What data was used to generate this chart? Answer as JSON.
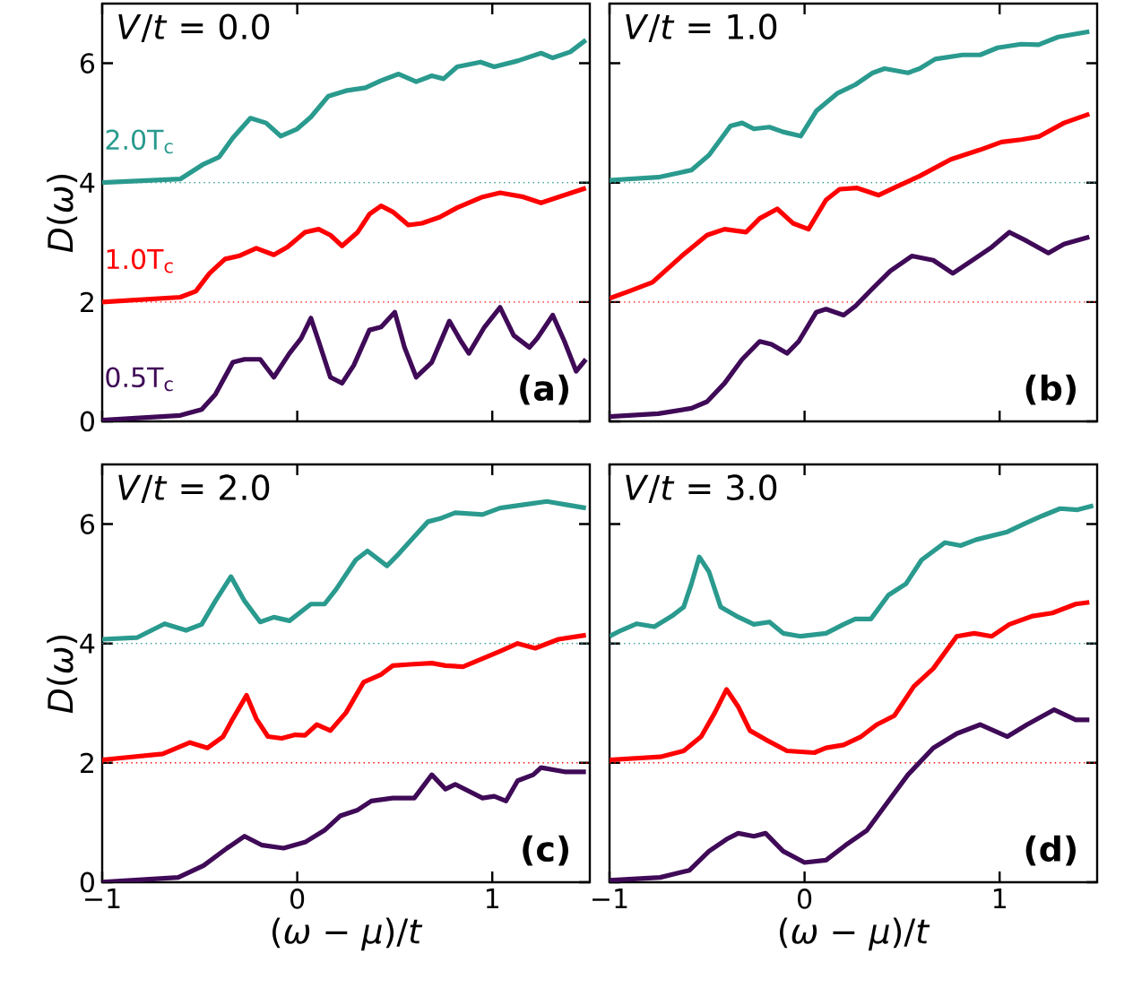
{
  "chart_data": [
    {
      "type": "line",
      "ylabel": "*D*(*ω*)",
      "annotations": [
        "*V*/*t* = 0.0",
        "(a)"
      ],
      "xlim": [
        -1,
        1.5
      ],
      "ylim": [
        0,
        7
      ],
      "xticks": [
        -1,
        0,
        1
      ],
      "yticks": [
        0,
        2,
        4,
        6
      ],
      "tick_labels": "y",
      "ref_lines": [
        {
          "axis": "y",
          "value": 4,
          "color": "#2a9a8e",
          "line_style": "dotted"
        },
        {
          "axis": "y",
          "value": 2,
          "color": "#ff0000",
          "line_style": "dotted"
        }
      ],
      "series": [
        {
          "name": "2.0T$_{c}$",
          "color": "#2a9a8e",
          "x": [
            -1,
            -0.6,
            -0.48,
            -0.4,
            -0.33,
            -0.24,
            -0.16,
            -0.085,
            0.0,
            0.07,
            0.16,
            0.25,
            0.35,
            0.43,
            0.52,
            0.61,
            0.69,
            0.75,
            0.82,
            0.94,
            1.01,
            1.13,
            1.25,
            1.31,
            1.4,
            1.48
          ],
          "values": [
            4.0,
            4.06,
            4.31,
            4.43,
            4.75,
            5.08,
            5.0,
            4.78,
            4.9,
            5.1,
            5.45,
            5.54,
            5.59,
            5.71,
            5.82,
            5.69,
            5.79,
            5.74,
            5.94,
            6.02,
            5.94,
            6.04,
            6.17,
            6.09,
            6.19,
            6.39
          ]
        },
        {
          "name": "1.0T$_{c}$",
          "color": "#ff0000",
          "x": [
            -1,
            -0.6,
            -0.52,
            -0.45,
            -0.37,
            -0.3,
            -0.21,
            -0.12,
            -0.05,
            0.04,
            0.11,
            0.17,
            0.23,
            0.31,
            0.37,
            0.43,
            0.49,
            0.57,
            0.64,
            0.73,
            0.82,
            0.95,
            1.04,
            1.16,
            1.25,
            1.34,
            1.48
          ],
          "values": [
            2.0,
            2.08,
            2.18,
            2.48,
            2.72,
            2.77,
            2.9,
            2.79,
            2.92,
            3.17,
            3.22,
            3.12,
            2.94,
            3.17,
            3.47,
            3.61,
            3.51,
            3.29,
            3.32,
            3.42,
            3.58,
            3.76,
            3.83,
            3.76,
            3.66,
            3.76,
            3.91
          ]
        },
        {
          "name": "0.5T$_{c}$",
          "color": "#3f0a57",
          "x": [
            -1,
            -0.6,
            -0.49,
            -0.42,
            -0.33,
            -0.27,
            -0.19,
            -0.12,
            -0.04,
            0.02,
            0.07,
            0.11,
            0.17,
            0.23,
            0.29,
            0.37,
            0.43,
            0.5,
            0.55,
            0.61,
            0.69,
            0.78,
            0.84,
            0.88,
            0.96,
            1.04,
            1.11,
            1.19,
            1.23,
            1.31,
            1.37,
            1.43,
            1.48
          ],
          "values": [
            0.02,
            0.1,
            0.2,
            0.45,
            0.99,
            1.04,
            1.04,
            0.74,
            1.14,
            1.39,
            1.73,
            1.34,
            0.74,
            0.64,
            0.94,
            1.53,
            1.58,
            1.83,
            1.24,
            0.74,
            0.99,
            1.68,
            1.34,
            1.14,
            1.58,
            1.91,
            1.44,
            1.24,
            1.39,
            1.78,
            1.34,
            0.84,
            1.04
          ]
        }
      ]
    },
    {
      "type": "line",
      "annotations": [
        "*V*/*t* = 1.0",
        "(b)"
      ],
      "xlim": [
        -1,
        1.5
      ],
      "ylim": [
        0,
        7
      ],
      "xticks": [
        -1,
        0,
        1
      ],
      "yticks": [
        0,
        2,
        4,
        6
      ],
      "tick_labels": false,
      "ref_lines": [
        {
          "axis": "y",
          "value": 4,
          "color": "#2a9a8e",
          "line_style": "dotted"
        },
        {
          "axis": "y",
          "value": 2,
          "color": "#ff0000",
          "line_style": "dotted"
        }
      ],
      "series": [
        {
          "color": "#2a9a8e",
          "x": [
            -1,
            -0.75,
            -0.58,
            -0.49,
            -0.38,
            -0.32,
            -0.26,
            -0.18,
            -0.11,
            -0.02,
            0.06,
            0.17,
            0.26,
            0.35,
            0.41,
            0.53,
            0.59,
            0.67,
            0.81,
            0.9,
            0.99,
            1.11,
            1.2,
            1.3,
            1.46
          ],
          "values": [
            4.04,
            4.09,
            4.21,
            4.46,
            4.95,
            5.0,
            4.9,
            4.93,
            4.85,
            4.78,
            5.2,
            5.5,
            5.64,
            5.84,
            5.91,
            5.84,
            5.91,
            6.07,
            6.14,
            6.14,
            6.26,
            6.32,
            6.31,
            6.44,
            6.53
          ]
        },
        {
          "color": "#ff0000",
          "x": [
            -1,
            -0.9,
            -0.78,
            -0.63,
            -0.5,
            -0.41,
            -0.3,
            -0.23,
            -0.14,
            -0.06,
            0.02,
            0.11,
            0.18,
            0.27,
            0.38,
            0.47,
            0.59,
            0.75,
            0.9,
            1.01,
            1.11,
            1.2,
            1.33,
            1.46
          ],
          "values": [
            2.06,
            2.18,
            2.33,
            2.77,
            3.12,
            3.22,
            3.17,
            3.4,
            3.56,
            3.32,
            3.22,
            3.71,
            3.89,
            3.91,
            3.79,
            3.93,
            4.11,
            4.39,
            4.55,
            4.68,
            4.72,
            4.77,
            5.0,
            5.15
          ]
        },
        {
          "color": "#3f0a57",
          "x": [
            -1,
            -0.75,
            -0.58,
            -0.5,
            -0.41,
            -0.32,
            -0.23,
            -0.17,
            -0.09,
            -0.03,
            0.06,
            0.11,
            0.2,
            0.26,
            0.35,
            0.44,
            0.55,
            0.66,
            0.76,
            0.87,
            0.96,
            1.05,
            1.14,
            1.25,
            1.33,
            1.46
          ],
          "values": [
            0.08,
            0.13,
            0.22,
            0.33,
            0.64,
            1.04,
            1.34,
            1.29,
            1.14,
            1.34,
            1.83,
            1.88,
            1.78,
            1.93,
            2.23,
            2.52,
            2.77,
            2.7,
            2.48,
            2.72,
            2.92,
            3.17,
            3.02,
            2.82,
            2.97,
            3.09
          ]
        }
      ]
    },
    {
      "type": "line",
      "xlabel": "(*ω* − *μ*)/*t*",
      "ylabel": "*D*(*ω*)",
      "annotations": [
        "*V*/*t* = 2.0",
        "(c)"
      ],
      "xlim": [
        -1,
        1.5
      ],
      "ylim": [
        0,
        7
      ],
      "xticks": [
        {
          "value": -1,
          "label": "−1"
        },
        0,
        1
      ],
      "yticks": [
        0,
        2,
        4,
        6
      ],
      "ref_lines": [
        {
          "axis": "y",
          "value": 4,
          "color": "#2a9a8e",
          "line_style": "dotted"
        },
        {
          "axis": "y",
          "value": 2,
          "color": "#ff0000",
          "line_style": "dotted"
        }
      ],
      "series": [
        {
          "color": "#2a9a8e",
          "x": [
            -1,
            -0.82,
            -0.68,
            -0.57,
            -0.49,
            -0.42,
            -0.34,
            -0.27,
            -0.19,
            -0.12,
            -0.04,
            0.07,
            0.14,
            0.2,
            0.3,
            0.36,
            0.46,
            0.52,
            0.6,
            0.67,
            0.73,
            0.81,
            0.95,
            1.04,
            1.17,
            1.28,
            1.37,
            1.48
          ],
          "values": [
            4.07,
            4.1,
            4.33,
            4.22,
            4.32,
            4.71,
            5.12,
            4.71,
            4.36,
            4.44,
            4.38,
            4.66,
            4.66,
            4.91,
            5.4,
            5.55,
            5.3,
            5.5,
            5.79,
            6.04,
            6.09,
            6.19,
            6.16,
            6.27,
            6.33,
            6.38,
            6.33,
            6.27
          ]
        },
        {
          "color": "#ff0000",
          "x": [
            -1,
            -0.69,
            -0.55,
            -0.46,
            -0.38,
            -0.33,
            -0.26,
            -0.21,
            -0.15,
            -0.08,
            -0.01,
            0.04,
            0.1,
            0.17,
            0.25,
            0.34,
            0.43,
            0.49,
            0.58,
            0.69,
            0.76,
            0.85,
            0.93,
            1.04,
            1.13,
            1.22,
            1.34,
            1.48
          ],
          "values": [
            2.05,
            2.15,
            2.34,
            2.25,
            2.44,
            2.74,
            3.13,
            2.74,
            2.44,
            2.41,
            2.47,
            2.46,
            2.64,
            2.54,
            2.84,
            3.35,
            3.48,
            3.63,
            3.65,
            3.67,
            3.63,
            3.61,
            3.72,
            3.87,
            4.0,
            3.92,
            4.07,
            4.14
          ]
        },
        {
          "color": "#3f0a57",
          "x": [
            -1,
            -0.61,
            -0.48,
            -0.36,
            -0.27,
            -0.18,
            -0.07,
            0.04,
            0.14,
            0.22,
            0.31,
            0.38,
            0.49,
            0.6,
            0.69,
            0.76,
            0.81,
            0.95,
            1.01,
            1.07,
            1.13,
            1.21,
            1.25,
            1.37,
            1.48
          ],
          "values": [
            0.0,
            0.08,
            0.28,
            0.57,
            0.77,
            0.62,
            0.57,
            0.67,
            0.87,
            1.11,
            1.21,
            1.36,
            1.41,
            1.41,
            1.8,
            1.56,
            1.64,
            1.41,
            1.44,
            1.36,
            1.7,
            1.8,
            1.92,
            1.85,
            1.85
          ]
        }
      ]
    },
    {
      "type": "line",
      "xlabel": "(*ω* − *μ*)/*t*",
      "annotations": [
        "*V*/*t* = 3.0",
        "(d)"
      ],
      "xlim": [
        -1,
        1.5
      ],
      "ylim": [
        0,
        7
      ],
      "xticks": [
        {
          "value": -1,
          "label": "−1"
        },
        0,
        1
      ],
      "yticks": [
        0,
        2,
        4,
        6
      ],
      "tick_labels": "x",
      "ref_lines": [
        {
          "axis": "y",
          "value": 4,
          "color": "#2a9a8e",
          "line_style": "dotted"
        },
        {
          "axis": "y",
          "value": 2,
          "color": "#ff0000",
          "line_style": "dotted"
        }
      ],
      "series": [
        {
          "color": "#2a9a8e",
          "x": [
            -1,
            -0.94,
            -0.86,
            -0.77,
            -0.68,
            -0.62,
            -0.58,
            -0.54,
            -0.49,
            -0.43,
            -0.35,
            -0.26,
            -0.18,
            -0.11,
            -0.02,
            0.11,
            0.2,
            0.26,
            0.34,
            0.43,
            0.52,
            0.6,
            0.72,
            0.8,
            0.88,
            1.04,
            1.13,
            1.22,
            1.31,
            1.4,
            1.48
          ],
          "values": [
            4.12,
            4.22,
            4.33,
            4.28,
            4.46,
            4.61,
            5.0,
            5.45,
            5.2,
            4.61,
            4.46,
            4.32,
            4.36,
            4.17,
            4.12,
            4.17,
            4.32,
            4.41,
            4.41,
            4.81,
            5.0,
            5.4,
            5.69,
            5.64,
            5.74,
            5.87,
            6.01,
            6.14,
            6.26,
            6.24,
            6.31
          ]
        },
        {
          "color": "#ff0000",
          "x": [
            -1,
            -0.74,
            -0.62,
            -0.53,
            -0.46,
            -0.4,
            -0.34,
            -0.28,
            -0.2,
            -0.09,
            0.05,
            0.11,
            0.2,
            0.29,
            0.37,
            0.46,
            0.56,
            0.66,
            0.78,
            0.87,
            0.96,
            1.05,
            1.17,
            1.27,
            1.39,
            1.46
          ],
          "values": [
            2.05,
            2.1,
            2.2,
            2.44,
            2.84,
            3.23,
            2.94,
            2.54,
            2.39,
            2.2,
            2.17,
            2.25,
            2.3,
            2.44,
            2.64,
            2.79,
            3.28,
            3.58,
            4.12,
            4.17,
            4.12,
            4.32,
            4.46,
            4.51,
            4.66,
            4.69
          ]
        },
        {
          "color": "#3f0a57",
          "x": [
            -1,
            -0.74,
            -0.59,
            -0.49,
            -0.4,
            -0.34,
            -0.26,
            -0.2,
            -0.11,
            0.0,
            0.11,
            0.21,
            0.32,
            0.43,
            0.53,
            0.66,
            0.78,
            0.9,
            1.04,
            1.14,
            1.28,
            1.39,
            1.46
          ],
          "values": [
            0.03,
            0.08,
            0.2,
            0.52,
            0.72,
            0.82,
            0.77,
            0.82,
            0.52,
            0.33,
            0.37,
            0.62,
            0.87,
            1.36,
            1.8,
            2.25,
            2.49,
            2.64,
            2.44,
            2.64,
            2.89,
            2.72,
            2.72
          ]
        }
      ]
    }
  ]
}
